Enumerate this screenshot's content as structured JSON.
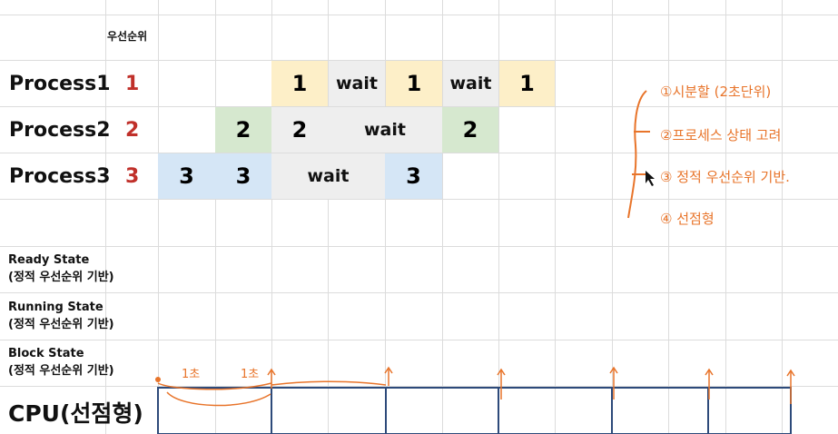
{
  "priority_header": "우선순위",
  "processes": [
    {
      "name": "Process1",
      "priority": "1",
      "priority_color": "#c0302a"
    },
    {
      "name": "Process2",
      "priority": "2",
      "priority_color": "#c0302a"
    },
    {
      "name": "Process3",
      "priority": "3",
      "priority_color": "#c0302a"
    }
  ],
  "timeline": {
    "p1": [
      "1",
      "wait",
      "1",
      "wait",
      "1"
    ],
    "p2": [
      "2",
      "2",
      "wait",
      "2"
    ],
    "p3": [
      "3",
      "3",
      "wait",
      "3"
    ]
  },
  "colors": {
    "p1_fill": "#fdefc8",
    "p2_fill": "#d6e8cf",
    "p3_fill": "#d5e6f6",
    "wait_fill": "#eeeeee",
    "annotation": "#e8742a",
    "cpu_line": "#2d4a7a"
  },
  "states": [
    {
      "title": "Ready State",
      "subtitle": "(정적 우선순위 기반)"
    },
    {
      "title": "Running State",
      "subtitle": "(정적 우선순위 기반)"
    },
    {
      "title": "Block State",
      "subtitle": "(정적 우선순위 기반)"
    }
  ],
  "cpu_label": "CPU(선점형)",
  "notes": [
    "①시분할 (2초단위)",
    "②프로세스 상태 고려",
    "③ 정적 우선순위 기반.",
    "④ 선점형"
  ],
  "cpu_marks": [
    "1초",
    "1초"
  ]
}
